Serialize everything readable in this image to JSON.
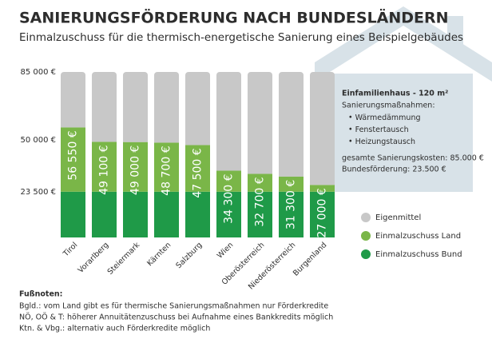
{
  "chart_data": {
    "type": "stacked_bar",
    "title": "SANIERUNGSFÖRDERUNG NACH BUNDESLÄNDERN",
    "subtitle": "Einmalzuschuss für die thermisch-energetische Sanierung eines Beispielgebäudes",
    "categories": [
      "Tirol",
      "Vorarlberg",
      "Steiermark",
      "Kärnten",
      "Salzburg",
      "Wien",
      "Oberösterreich",
      "Niederösterreich",
      "Burgenland"
    ],
    "series": [
      {
        "name": "Einmalzuschuss Bund",
        "color": "#1f9a48",
        "values": [
          23500,
          23500,
          23500,
          23500,
          23500,
          23500,
          23500,
          23500,
          23500
        ]
      },
      {
        "name": "Einmalzuschuss Land",
        "color": "#7ab648",
        "values": [
          33050,
          25600,
          25500,
          25200,
          24000,
          10800,
          9200,
          7800,
          3500
        ]
      },
      {
        "name": "Eigenmittel",
        "color": "#c8c8c8",
        "values": [
          28450,
          35900,
          36000,
          36300,
          37500,
          50700,
          52300,
          53700,
          58000
        ]
      }
    ],
    "bar_label_values": [
      56550,
      49100,
      49000,
      48700,
      47500,
      34300,
      32700,
      31300,
      27000
    ],
    "bar_labels": [
      "56 550 €",
      "49 100 €",
      "49 000 €",
      "48 700 €",
      "47 500 €",
      "34 300 €",
      "32 700 €",
      "31 300 €",
      "27 000 €"
    ],
    "ylim": [
      0,
      85000
    ],
    "yticks": [
      {
        "value": 23500,
        "label": "23 500 €"
      },
      {
        "value": 50000,
        "label": "50 000 €"
      },
      {
        "value": 85000,
        "label": "85 000 €"
      }
    ],
    "info": {
      "heading": "Einfamilienhaus - 120 m²",
      "subheading": "Sanierungsmaßnahmen:",
      "items": [
        "Wärmedämmung",
        "Fenstertausch",
        "Heizungstausch"
      ],
      "costs": "gesamte Sanierungskosten: 85.000 €",
      "funding": "Bundesförderung: 23.500 €"
    },
    "footnotes": {
      "heading": "Fußnoten:",
      "lines": [
        "Bgld.: vom Land gibt es für thermische Sanierungsmaßnahmen nur Förderkredite",
        "NÖ, OÖ & T: höherer Annuitätenzuschuss bei Aufnahme eines Bankkredits möglich",
        "Ktn. & Vbg.: alternativ auch Förderkredite möglich"
      ]
    }
  }
}
